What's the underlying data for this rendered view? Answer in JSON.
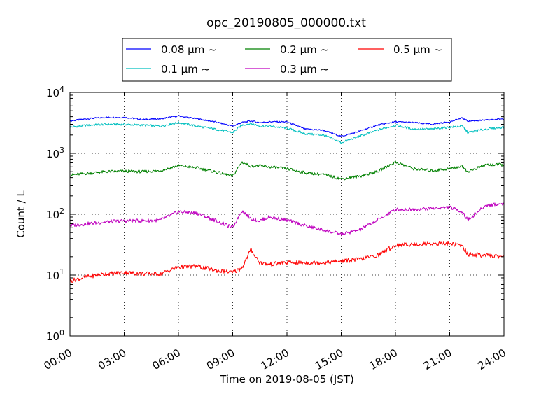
{
  "chart_data": {
    "type": "line",
    "title": "opc_20190805_000000.txt",
    "xlabel": "Time on 2019-08-05 (JST)",
    "ylabel": "Count / L",
    "yscale": "log",
    "ylim": [
      1,
      10000
    ],
    "xlim_hours": [
      0,
      24
    ],
    "grid": true,
    "legend_position": "top-center",
    "x_tick_labels": [
      "00:00",
      "03:00",
      "06:00",
      "09:00",
      "12:00",
      "15:00",
      "18:00",
      "21:00",
      "24:00"
    ],
    "y_tick_labels": [
      {
        "base": "10",
        "exp": "0"
      },
      {
        "base": "10",
        "exp": "1"
      },
      {
        "base": "10",
        "exp": "2"
      },
      {
        "base": "10",
        "exp": "3"
      },
      {
        "base": "10",
        "exp": "4"
      }
    ],
    "x_hours": [
      0,
      1,
      2,
      3,
      4,
      5,
      6,
      7,
      8,
      9,
      9.5,
      10,
      10.5,
      11,
      12,
      13,
      14,
      15,
      16,
      17,
      18,
      19,
      20,
      21,
      21.7,
      22,
      23,
      24
    ],
    "series": [
      {
        "name": "0.08 μm ~",
        "color": "#0000ff",
        "values": [
          3400,
          3700,
          3900,
          3900,
          3600,
          3700,
          4100,
          3700,
          3300,
          2800,
          3200,
          3400,
          3200,
          3300,
          3300,
          2500,
          2400,
          1900,
          2300,
          2900,
          3300,
          3200,
          3000,
          3300,
          3800,
          3400,
          3500,
          3700
        ]
      },
      {
        "name": "0.1 μm ~",
        "color": "#00bfbf",
        "values": [
          2700,
          2900,
          3000,
          3000,
          2900,
          2800,
          3200,
          2800,
          2500,
          2200,
          2900,
          3100,
          2800,
          2800,
          2600,
          2100,
          2000,
          1500,
          1900,
          2400,
          2900,
          2500,
          2500,
          2700,
          2800,
          2200,
          2500,
          2700
        ]
      },
      {
        "name": "0.2 μm ~",
        "color": "#008000",
        "values": [
          440,
          470,
          500,
          510,
          500,
          520,
          630,
          580,
          500,
          420,
          720,
          620,
          620,
          600,
          560,
          480,
          450,
          380,
          420,
          500,
          720,
          560,
          520,
          560,
          620,
          500,
          650,
          650
        ]
      },
      {
        "name": "0.3 μm ~",
        "color": "#bf00bf",
        "values": [
          65,
          70,
          75,
          78,
          78,
          80,
          110,
          105,
          80,
          60,
          115,
          85,
          78,
          90,
          80,
          65,
          55,
          47,
          55,
          80,
          120,
          120,
          125,
          130,
          110,
          80,
          140,
          150
        ]
      },
      {
        "name": "0.5 μm ~",
        "color": "#ff0000",
        "values": [
          8,
          9.5,
          10.5,
          11,
          10.5,
          10.5,
          13.5,
          14,
          12,
          11,
          13,
          26,
          16,
          15,
          16,
          16,
          16,
          17,
          18,
          21,
          31,
          32,
          33,
          33,
          30,
          22,
          21,
          20
        ]
      }
    ]
  }
}
